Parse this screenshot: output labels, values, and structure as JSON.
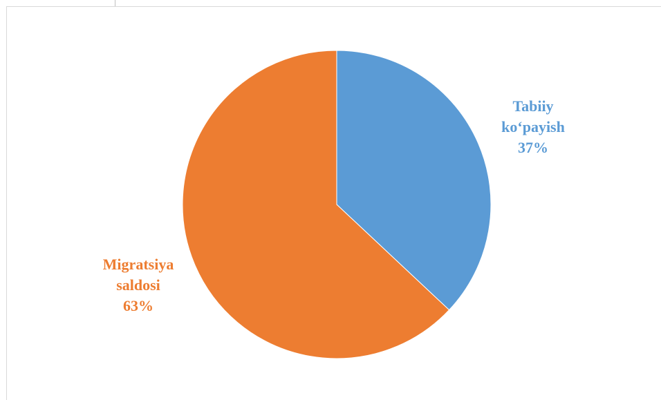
{
  "chart_data": {
    "type": "pie",
    "title": "",
    "slices": [
      {
        "name_lines": [
          "Tabiiy",
          "ko‘payish"
        ],
        "percent_label": "37%",
        "value": 37,
        "color": "#5b9bd5"
      },
      {
        "name_lines": [
          "Migratsiya",
          "saldosi"
        ],
        "percent_label": "63%",
        "value": 63,
        "color": "#ed7d31"
      }
    ],
    "start_angle_deg": 0,
    "direction": "clockwise",
    "legend": "none",
    "data_labels": "outside"
  }
}
